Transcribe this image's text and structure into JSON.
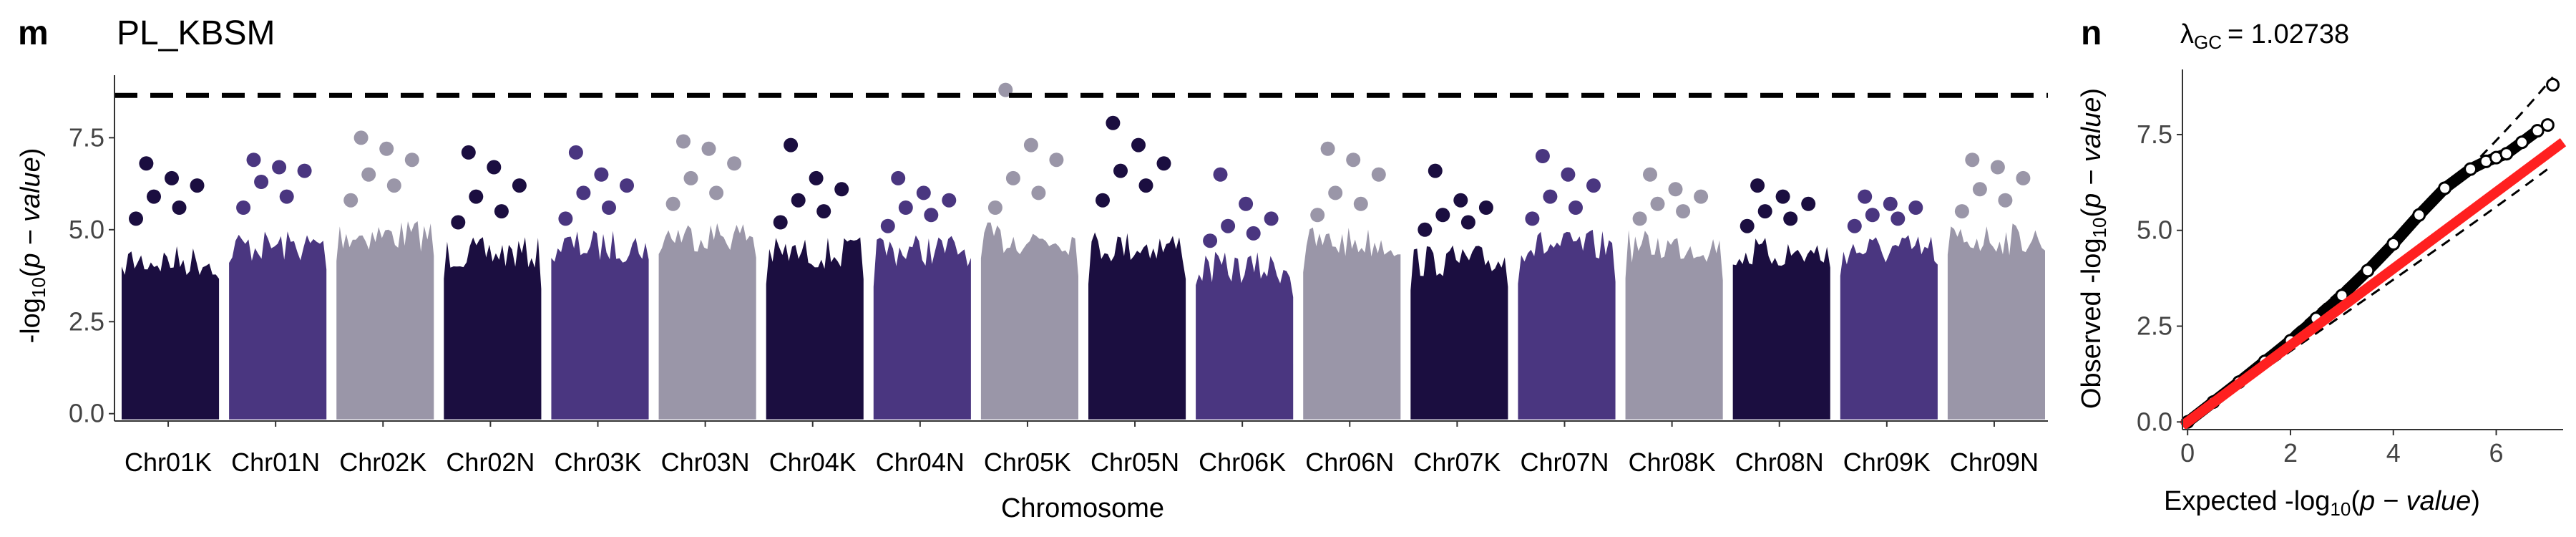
{
  "panels": {
    "manhattan": {
      "letter": "m"
    },
    "qq": {
      "letter": "n",
      "lambda_label": "λ",
      "lambda_sub": "GC",
      "lambda_value": "= 1.02738"
    }
  },
  "chart_data": [
    {
      "type": "scatter",
      "subtype": "manhattan",
      "title": "PL_KBSM",
      "xlabel": "Chromosome",
      "ylabel": "-log10(p − value)",
      "ylim": [
        -0.2,
        9.2
      ],
      "yticks": [
        0.0,
        2.5,
        5.0,
        7.5
      ],
      "ytick_labels": [
        "0.0",
        "2.5",
        "5.0",
        "7.5"
      ],
      "significance_threshold": 8.65,
      "grid": false,
      "legend": "none",
      "palette": [
        "#1b0e40",
        "#4a3680",
        "#9a96a8"
      ],
      "categories": [
        "Chr01K",
        "Chr01N",
        "Chr02K",
        "Chr02N",
        "Chr03K",
        "Chr03N",
        "Chr04K",
        "Chr04N",
        "Chr05K",
        "Chr05N",
        "Chr06K",
        "Chr06N",
        "Chr07K",
        "Chr07N",
        "Chr08K",
        "Chr08N",
        "Chr09K",
        "Chr09N"
      ],
      "chromosomes": [
        {
          "name": "Chr01K",
          "color": "#1b0e40",
          "bulk_max": 4.6,
          "peaks": [
            6.8,
            6.4,
            6.2,
            5.9,
            5.6,
            5.3
          ]
        },
        {
          "name": "Chr01N",
          "color": "#4a3680",
          "bulk_max": 5.0,
          "peaks": [
            6.9,
            6.7,
            6.6,
            6.3,
            5.9,
            5.6
          ]
        },
        {
          "name": "Chr02K",
          "color": "#9a96a8",
          "bulk_max": 5.3,
          "peaks": [
            7.5,
            7.2,
            6.9,
            6.5,
            6.2,
            5.8
          ]
        },
        {
          "name": "Chr02N",
          "color": "#1b0e40",
          "bulk_max": 4.8,
          "peaks": [
            7.1,
            6.7,
            6.2,
            5.9,
            5.5,
            5.2
          ]
        },
        {
          "name": "Chr03K",
          "color": "#4a3680",
          "bulk_max": 5.0,
          "peaks": [
            7.1,
            6.5,
            6.2,
            6.0,
            5.6,
            5.3
          ]
        },
        {
          "name": "Chr03N",
          "color": "#9a96a8",
          "bulk_max": 5.3,
          "peaks": [
            7.4,
            7.2,
            6.8,
            6.4,
            6.0,
            5.7
          ]
        },
        {
          "name": "Chr04K",
          "color": "#1b0e40",
          "bulk_max": 4.8,
          "peaks": [
            7.3,
            6.4,
            6.1,
            5.8,
            5.5,
            5.2
          ]
        },
        {
          "name": "Chr04N",
          "color": "#4a3680",
          "bulk_max": 4.9,
          "peaks": [
            6.4,
            6.0,
            5.8,
            5.6,
            5.4,
            5.1
          ]
        },
        {
          "name": "Chr05K",
          "color": "#9a96a8",
          "bulk_max": 5.2,
          "peaks": [
            8.8,
            7.3,
            6.9,
            6.4,
            6.0,
            5.6
          ]
        },
        {
          "name": "Chr05N",
          "color": "#1b0e40",
          "bulk_max": 5.0,
          "peaks": [
            7.9,
            7.3,
            6.8,
            6.6,
            6.2,
            5.8
          ]
        },
        {
          "name": "Chr06K",
          "color": "#4a3680",
          "bulk_max": 4.4,
          "peaks": [
            6.5,
            5.7,
            5.3,
            5.1,
            4.9,
            4.7
          ]
        },
        {
          "name": "Chr06N",
          "color": "#9a96a8",
          "bulk_max": 5.1,
          "peaks": [
            7.2,
            6.9,
            6.5,
            6.0,
            5.7,
            5.4
          ]
        },
        {
          "name": "Chr07K",
          "color": "#1b0e40",
          "bulk_max": 4.6,
          "peaks": [
            6.6,
            5.8,
            5.6,
            5.4,
            5.2,
            5.0
          ]
        },
        {
          "name": "Chr07N",
          "color": "#4a3680",
          "bulk_max": 5.0,
          "peaks": [
            7.0,
            6.5,
            6.2,
            5.9,
            5.6,
            5.3
          ]
        },
        {
          "name": "Chr08K",
          "color": "#9a96a8",
          "bulk_max": 5.0,
          "peaks": [
            6.5,
            6.1,
            5.9,
            5.7,
            5.5,
            5.3
          ]
        },
        {
          "name": "Chr08N",
          "color": "#1b0e40",
          "bulk_max": 4.8,
          "peaks": [
            6.2,
            5.9,
            5.7,
            5.5,
            5.3,
            5.1
          ]
        },
        {
          "name": "Chr09K",
          "color": "#4a3680",
          "bulk_max": 4.9,
          "peaks": [
            5.9,
            5.7,
            5.6,
            5.4,
            5.3,
            5.1
          ]
        },
        {
          "name": "Chr09N",
          "color": "#9a96a8",
          "bulk_max": 5.2,
          "peaks": [
            6.9,
            6.7,
            6.4,
            6.1,
            5.8,
            5.5
          ]
        }
      ]
    },
    {
      "type": "scatter",
      "subtype": "qq",
      "xlabel_prefix": "Expected -log",
      "ylabel_prefix": "Observed -log",
      "label_sub": "10",
      "label_italic": "p − value",
      "xlim": [
        -0.1,
        7.3
      ],
      "ylim": [
        -0.2,
        9.2
      ],
      "xticks": [
        0,
        2,
        4,
        6
      ],
      "xtick_labels": [
        "0",
        "2",
        "4",
        "6"
      ],
      "yticks": [
        0.0,
        2.5,
        5.0,
        7.5
      ],
      "ytick_labels": [
        "0.0",
        "2.5",
        "5.0",
        "7.5"
      ],
      "points": [
        [
          0.0,
          0.0
        ],
        [
          0.5,
          0.52
        ],
        [
          1.0,
          1.04
        ],
        [
          1.5,
          1.58
        ],
        [
          2.0,
          2.12
        ],
        [
          2.5,
          2.7
        ],
        [
          3.0,
          3.3
        ],
        [
          3.5,
          3.95
        ],
        [
          4.0,
          4.65
        ],
        [
          4.5,
          5.4
        ],
        [
          5.0,
          6.1
        ],
        [
          5.5,
          6.6
        ],
        [
          5.8,
          6.8
        ],
        [
          6.0,
          6.9
        ],
        [
          6.2,
          7.0
        ],
        [
          6.5,
          7.3
        ],
        [
          6.8,
          7.6
        ],
        [
          7.0,
          7.75
        ],
        [
          7.1,
          8.8
        ]
      ],
      "reference_line": {
        "slope": 1.0,
        "color": "#ff2020"
      },
      "confidence_band": {
        "lower_end": [
          7.0,
          6.6
        ],
        "upper_end": [
          7.1,
          9.0
        ],
        "style": "dashed"
      },
      "grid": false,
      "legend": "none"
    }
  ]
}
